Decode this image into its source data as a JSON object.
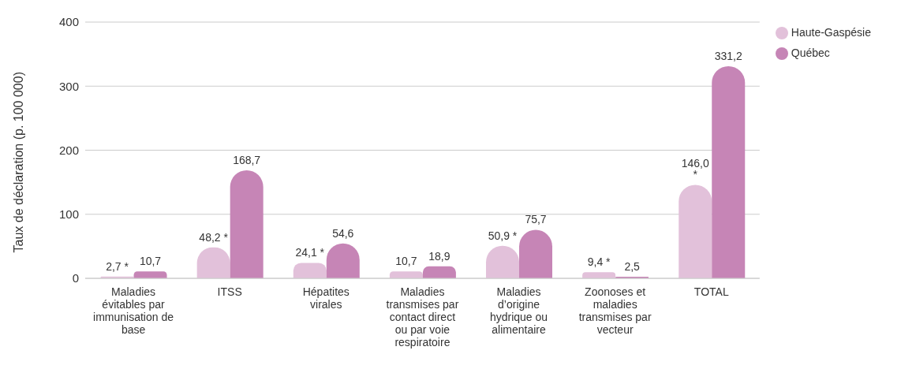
{
  "chart_data": {
    "type": "bar",
    "ylabel": "Taux de déclaration (p. 100 000)",
    "categories": [
      "Maladies évitables par immunisation de base",
      "ITSS",
      "Hépatites virales",
      "Maladies transmises par contact direct ou par voie respiratoire",
      "Maladies d’origine hydrique ou alimentaire",
      "Zoonoses et maladies transmises par vecteur",
      "TOTAL"
    ],
    "series": [
      {
        "name": "Haute-Gaspésie",
        "color": "#e2c1da",
        "values": [
          2.7,
          48.2,
          24.1,
          10.7,
          50.9,
          9.4,
          146.0
        ],
        "value_labels": [
          "2,7 *",
          "48,2 *",
          "24,1 *",
          "10,7",
          "50,9 *",
          "9,4 *",
          "146,0 *"
        ]
      },
      {
        "name": "Québec",
        "color": "#c685b6",
        "values": [
          10.7,
          168.7,
          54.6,
          18.9,
          75.7,
          2.5,
          331.2
        ],
        "value_labels": [
          "10,7",
          "168,7",
          "54,6",
          "18,9",
          "75,7",
          "2,5",
          "331,2"
        ]
      }
    ],
    "ylim": [
      0,
      400
    ],
    "yticks": [
      0,
      100,
      200,
      300,
      400
    ],
    "grid": "y",
    "legend": "top right"
  }
}
